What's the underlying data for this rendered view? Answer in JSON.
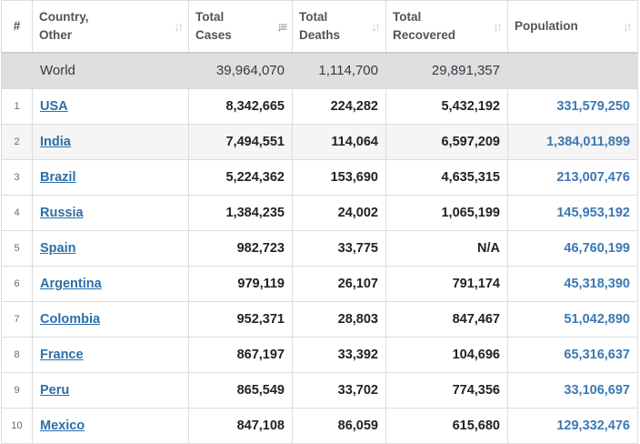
{
  "headers": {
    "rank": "#",
    "country_line1": "Country,",
    "country_line2": "Other",
    "cases_line1": "Total",
    "cases_line2": "Cases",
    "deaths_line1": "Total",
    "deaths_line2": "Deaths",
    "recovered_line1": "Total",
    "recovered_line2": "Recovered",
    "population": "Population"
  },
  "world": {
    "rank": "",
    "name": "World",
    "cases": "39,964,070",
    "deaths": "1,114,700",
    "recovered": "29,891,357",
    "population": ""
  },
  "rows": [
    {
      "rank": "1",
      "country": "USA",
      "cases": "8,342,665",
      "deaths": "224,282",
      "recovered": "5,432,192",
      "population": "331,579,250"
    },
    {
      "rank": "2",
      "country": "India",
      "cases": "7,494,551",
      "deaths": "114,064",
      "recovered": "6,597,209",
      "population": "1,384,011,899"
    },
    {
      "rank": "3",
      "country": "Brazil",
      "cases": "5,224,362",
      "deaths": "153,690",
      "recovered": "4,635,315",
      "population": "213,007,476"
    },
    {
      "rank": "4",
      "country": "Russia",
      "cases": "1,384,235",
      "deaths": "24,002",
      "recovered": "1,065,199",
      "population": "145,953,192"
    },
    {
      "rank": "5",
      "country": "Spain",
      "cases": "982,723",
      "deaths": "33,775",
      "recovered": "N/A",
      "population": "46,760,199"
    },
    {
      "rank": "6",
      "country": "Argentina",
      "cases": "979,119",
      "deaths": "26,107",
      "recovered": "791,174",
      "population": "45,318,390"
    },
    {
      "rank": "7",
      "country": "Colombia",
      "cases": "952,371",
      "deaths": "28,803",
      "recovered": "847,467",
      "population": "51,042,890"
    },
    {
      "rank": "8",
      "country": "France",
      "cases": "867,197",
      "deaths": "33,392",
      "recovered": "104,696",
      "population": "65,316,637"
    },
    {
      "rank": "9",
      "country": "Peru",
      "cases": "865,549",
      "deaths": "33,702",
      "recovered": "774,356",
      "population": "33,106,697"
    },
    {
      "rank": "10",
      "country": "Mexico",
      "cases": "847,108",
      "deaths": "86,059",
      "recovered": "615,680",
      "population": "129,332,476"
    }
  ],
  "colors": {
    "link": "#2c6fa8",
    "population": "#3c78b4",
    "world_row_bg": "#dfdfdf",
    "alt_row_bg": "#f5f5f5"
  },
  "icons": {
    "sort": "sort-arrows-icon",
    "sort_active": "sort-desc-icon"
  },
  "sort_state": {
    "column": "cases",
    "direction": "desc"
  }
}
